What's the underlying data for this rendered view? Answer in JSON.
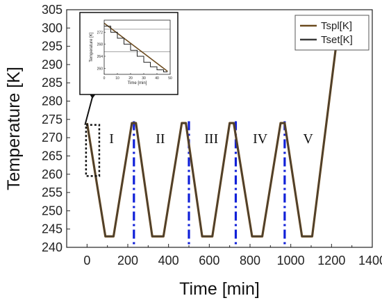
{
  "chart_data": {
    "type": "line",
    "xlabel": "Time [min]",
    "ylabel": "Temperature [K]",
    "xlim": [
      -100,
      1400
    ],
    "ylim": [
      240,
      305
    ],
    "xticks": [
      "0",
      "200",
      "400",
      "600",
      "800",
      "1000",
      "1200",
      "1400"
    ],
    "yticks": [
      "240",
      "245",
      "250",
      "255",
      "260",
      "265",
      "270",
      "275",
      "280",
      "285",
      "290",
      "295",
      "300",
      "305"
    ],
    "series": [
      {
        "name": "Tspl[K]",
        "color": "#6b4a1e",
        "x": [
          0,
          90,
          130,
          220,
          240,
          320,
          375,
          465,
          485,
          565,
          615,
          700,
          720,
          810,
          860,
          950,
          970,
          1055,
          1105,
          1240
        ],
        "y": [
          274,
          243,
          243,
          274,
          274,
          243,
          243,
          274,
          274,
          243,
          243,
          274,
          274,
          243,
          243,
          274,
          274,
          243,
          243,
          303
        ]
      },
      {
        "name": "Tset[K]",
        "color": "#3a3a3a",
        "x": [
          0,
          90,
          130,
          220,
          240,
          320,
          375,
          465,
          485,
          565,
          615,
          700,
          720,
          810,
          860,
          950,
          970,
          1055,
          1105,
          1240
        ],
        "y": [
          274,
          243,
          243,
          274,
          274,
          243,
          243,
          274,
          274,
          243,
          243,
          274,
          274,
          243,
          243,
          274,
          274,
          243,
          243,
          303
        ]
      }
    ],
    "phase_lines": [
      230,
      500,
      730,
      970
    ],
    "phase_labels": [
      {
        "text": "I",
        "x": 120
      },
      {
        "text": "II",
        "x": 360
      },
      {
        "text": "III",
        "x": 610
      },
      {
        "text": "IV",
        "x": 850
      },
      {
        "text": "V",
        "x": 1085
      }
    ],
    "highlight_box": {
      "x": [
        -5,
        60
      ],
      "y": [
        259.5,
        273.5
      ]
    },
    "legend_position": "top-right",
    "inset": {
      "xlabel": "Time [min]",
      "ylabel": "Temperature [K]",
      "xlim": [
        0,
        50
      ],
      "ylim": [
        258,
        276
      ],
      "xticks": [
        "0",
        "10",
        "20",
        "30",
        "40",
        "50"
      ],
      "yticks": [
        "260",
        "264",
        "268",
        "272"
      ],
      "steps_x": [
        0,
        5,
        5,
        10,
        10,
        15,
        15,
        20,
        20,
        25,
        25,
        30,
        30,
        35,
        35,
        40,
        40,
        45,
        45,
        48
      ],
      "steps_y": [
        274,
        274,
        272,
        272,
        270,
        270,
        268,
        268,
        266,
        266,
        264,
        264,
        262,
        262,
        260.5,
        260.5,
        259.5,
        259.5,
        258.8,
        258.8
      ],
      "ramp_x": [
        0,
        48
      ],
      "ramp_y": [
        275,
        259
      ],
      "ref_y": [
        273,
        265.5
      ]
    }
  }
}
